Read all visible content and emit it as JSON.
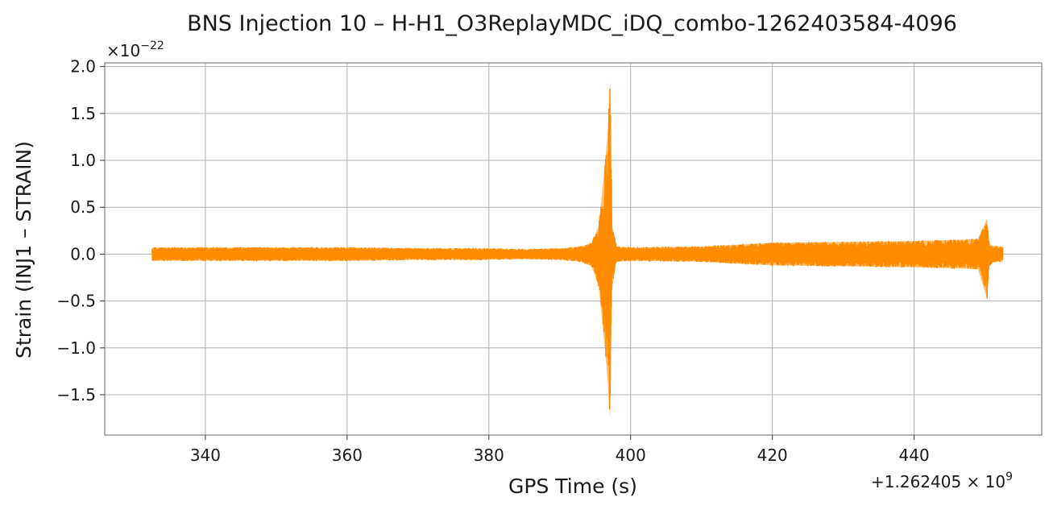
{
  "chart_data": {
    "type": "line",
    "title": "BNS Injection 10 – H-H1_O3ReplayMDC_iDQ_combo-1262403584-4096",
    "xlabel": "GPS Time (s)",
    "ylabel": "Strain (INJ1 – STRAIN)",
    "x_offset_label": "+1.262405 × 10",
    "x_offset_exponent": "9",
    "y_multiplier_label": "×10",
    "y_multiplier_exponent": "−22",
    "xlim": [
      325.8,
      458.0
    ],
    "ylim": [
      -1.93,
      2.04
    ],
    "xticks": [
      340,
      360,
      380,
      400,
      420,
      440
    ],
    "xtick_labels": [
      "340",
      "360",
      "380",
      "400",
      "420",
      "440"
    ],
    "yticks": [
      -1.5,
      -1.0,
      -0.5,
      0.0,
      0.5,
      1.0,
      1.5,
      2.0
    ],
    "ytick_labels": [
      "−1.5",
      "−1.0",
      "−0.5",
      "0.0",
      "0.5",
      "1.0",
      "1.5",
      "2.0"
    ],
    "grid": true,
    "series": [
      {
        "color": "#ff8c00",
        "envelope": {
          "x": [
            332.5,
            340,
            350,
            360,
            370,
            380,
            385,
            390,
            393,
            394.5,
            395.5,
            396.3,
            396.8,
            397.1,
            397.4,
            398,
            400,
            410,
            420,
            430,
            440,
            445,
            449,
            450.3,
            450.6,
            451,
            452.5
          ],
          "upper": [
            0.07,
            0.07,
            0.07,
            0.07,
            0.06,
            0.06,
            0.05,
            0.06,
            0.08,
            0.12,
            0.3,
            0.9,
            1.35,
            1.86,
            0.3,
            0.08,
            0.07,
            0.08,
            0.12,
            0.13,
            0.14,
            0.15,
            0.16,
            0.38,
            0.12,
            0.09,
            0.08
          ],
          "lower": [
            -0.07,
            -0.07,
            -0.07,
            -0.07,
            -0.06,
            -0.06,
            -0.05,
            -0.06,
            -0.08,
            -0.13,
            -0.35,
            -0.95,
            -1.4,
            -1.76,
            -0.35,
            -0.08,
            -0.07,
            -0.08,
            -0.12,
            -0.13,
            -0.14,
            -0.15,
            -0.16,
            -0.48,
            -0.14,
            -0.09,
            -0.08
          ]
        }
      }
    ]
  }
}
